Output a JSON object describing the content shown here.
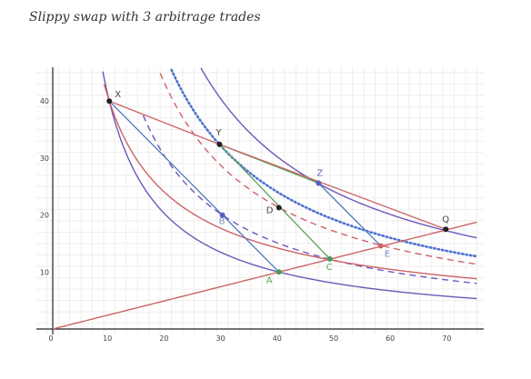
{
  "caption": "Slippy swap with 3 arbitrage trades",
  "chart_data": {
    "type": "line",
    "title": "Slippy swap with 3 arbitrage trades",
    "xlim": [
      0,
      75
    ],
    "ylim": [
      0,
      45
    ],
    "x_ticks": [
      0,
      10,
      20,
      30,
      40,
      50,
      60,
      70
    ],
    "y_ticks": [
      10,
      20,
      30,
      40
    ],
    "grid": true,
    "colors": {
      "purple": "#6E57B8",
      "red": "#CC6366",
      "blue": "#4B7BBF",
      "green": "#5BA35A",
      "blue_dotted": "#4F72D1",
      "grid_minor": "#eeeeee",
      "grid_major": "#cfcfcf",
      "axis": "#222222",
      "point": "#222222"
    },
    "points": [
      {
        "label": "X",
        "x": 10,
        "y": 40,
        "color": "#222222",
        "label_color": "#444444"
      },
      {
        "label": "Y",
        "x": 29.5,
        "y": 32.4,
        "color": "#222222",
        "label_color": "#444444"
      },
      {
        "label": "Z",
        "x": 47,
        "y": 25.6,
        "color": "#5B5BC0",
        "label_color": "#6E62C9"
      },
      {
        "label": "B",
        "x": 30,
        "y": 20,
        "color": "#5B5BC0",
        "label_color": "#7D8FC9"
      },
      {
        "label": "D",
        "x": 40,
        "y": 21.3,
        "color": "#222222",
        "label_color": "#444444"
      },
      {
        "label": "A",
        "x": 40,
        "y": 10,
        "color": "#4E9A5A",
        "label_color": "#5BA35A"
      },
      {
        "label": "C",
        "x": 49,
        "y": 12.3,
        "color": "#4E9A5A",
        "label_color": "#5BA35A"
      },
      {
        "label": "E",
        "x": 58,
        "y": 14.6,
        "color": "#CC6366",
        "label_color": "#7D8FC9"
      },
      {
        "label": "Q",
        "x": 69.5,
        "y": 17.5,
        "color": "#222222",
        "label_color": "#444444"
      }
    ],
    "series": [
      {
        "kind": "hyperbola",
        "k": 400,
        "x_range": [
          8.6,
          75
        ],
        "color": "#6E57B8",
        "style": "solid",
        "clip_y": [
          0,
          46
        ]
      },
      {
        "kind": "hyperbola",
        "k": 600,
        "x_range": [
          16,
          75
        ],
        "color": "#6E57B8",
        "style": "dashed",
        "clip_y": [
          0,
          46
        ]
      },
      {
        "kind": "hyperbola",
        "k": 1200,
        "x_range": [
          26,
          75
        ],
        "color": "#6E57B8",
        "style": "solid",
        "clip_y": [
          0,
          46
        ]
      },
      {
        "kind": "hyperbola",
        "k": 400,
        "exponent": 0.75,
        "x_center": 10,
        "y_center": 40,
        "x_range": [
          9.1,
          75
        ],
        "color": "#CC6366",
        "style": "solid",
        "clip_y": [
          0,
          46
        ]
      },
      {
        "kind": "hyperbola",
        "k": 853,
        "x_range": [
          19,
          75
        ],
        "color": "#CC6366",
        "style": "dashed",
        "clip_y": [
          0,
          46
        ]
      },
      {
        "kind": "hyperbola",
        "k": 955,
        "x_range": [
          21,
          75
        ],
        "color": "#4F72D1",
        "style": "dotted",
        "clip_y": [
          0,
          46
        ]
      },
      {
        "kind": "linear",
        "slope": 0.25,
        "x_range": [
          0,
          75
        ],
        "color": "#CC6366",
        "style": "solid"
      }
    ],
    "segments": [
      {
        "from": "X",
        "to": "B",
        "color": "#4B7BBF"
      },
      {
        "from": "B",
        "to": "A",
        "color": "#4B7BBF"
      },
      {
        "from": "Y",
        "to": "Z",
        "color": "#5BA35A"
      },
      {
        "from": "Y",
        "to": "C",
        "color": "#5BA35A"
      },
      {
        "from": "Z",
        "to": "E",
        "color": "#4B7BBF"
      },
      {
        "from": "X",
        "to": "Y",
        "color": "#CC6366"
      },
      {
        "from": "Y",
        "to": "Q",
        "color": "#CC6366"
      }
    ]
  }
}
